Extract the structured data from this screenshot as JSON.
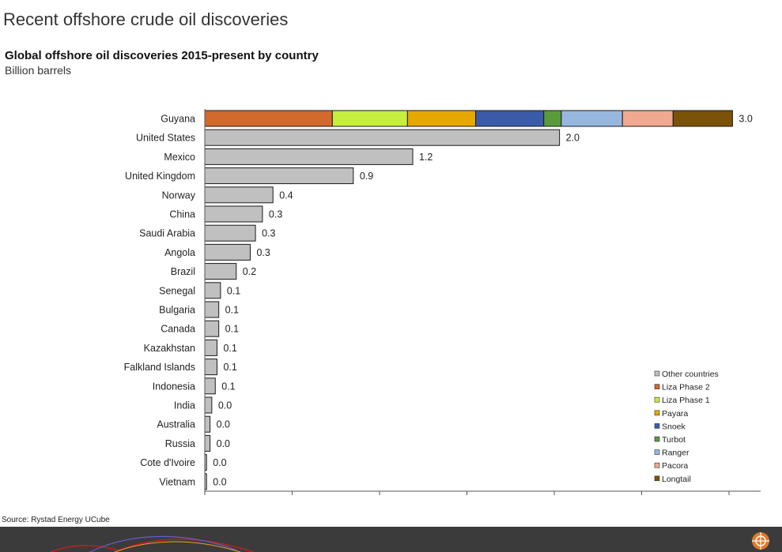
{
  "page_title": "Recent offshore crude oil discoveries",
  "source": "Source: Rystad Energy UCube",
  "colors": {
    "other": "#c0c0c0",
    "Liza Phase 2": "#d2692d",
    "Liza Phase 1": "#c6ee3e",
    "Payara": "#e6a700",
    "Snoek": "#3a5ba8",
    "Turbot": "#5b9a3c",
    "Ranger": "#98b7de",
    "Pacora": "#f0a890",
    "Longtail": "#7b5209",
    "footer": "#3b3b3b"
  },
  "chart_data": {
    "type": "bar",
    "orientation": "horizontal",
    "stacked": true,
    "title": "Global offshore oil discoveries 2015-present by country",
    "subtitle": "Billion barrels",
    "categories": [
      "Guyana",
      "United States",
      "Mexico",
      "United Kingdom",
      "Norway",
      "China",
      "Saudi Arabia",
      "Angola",
      "Brazil",
      "Senegal",
      "Bulgaria",
      "Canada",
      "Kazakhstan",
      "Falkland Islands",
      "Indonesia",
      "India",
      "Australia",
      "Russia",
      "Cote d'Ivoire",
      "Vietnam"
    ],
    "totals": [
      "3.0",
      "2.0",
      "1.2",
      "0.9",
      "0.4",
      "0.3",
      "0.3",
      "0.3",
      "0.2",
      "0.1",
      "0.1",
      "0.1",
      "0.1",
      "0.1",
      "0.1",
      "0.0",
      "0.0",
      "0.0",
      "0.0",
      "0.0"
    ],
    "series": [
      {
        "name": "Other countries",
        "values": [
          0,
          2.03,
          1.19,
          0.85,
          0.39,
          0.33,
          0.29,
          0.26,
          0.18,
          0.09,
          0.08,
          0.08,
          0.07,
          0.07,
          0.06,
          0.04,
          0.03,
          0.03,
          0.01,
          0.01
        ]
      },
      {
        "name": "Liza Phase 2",
        "values": [
          0.73,
          0,
          0,
          0,
          0,
          0,
          0,
          0,
          0,
          0,
          0,
          0,
          0,
          0,
          0,
          0,
          0,
          0,
          0,
          0
        ]
      },
      {
        "name": "Liza Phase 1",
        "values": [
          0.43,
          0,
          0,
          0,
          0,
          0,
          0,
          0,
          0,
          0,
          0,
          0,
          0,
          0,
          0,
          0,
          0,
          0,
          0,
          0
        ]
      },
      {
        "name": "Payara",
        "values": [
          0.39,
          0,
          0,
          0,
          0,
          0,
          0,
          0,
          0,
          0,
          0,
          0,
          0,
          0,
          0,
          0,
          0,
          0,
          0,
          0
        ]
      },
      {
        "name": "Snoek",
        "values": [
          0.39,
          0,
          0,
          0,
          0,
          0,
          0,
          0,
          0,
          0,
          0,
          0,
          0,
          0,
          0,
          0,
          0,
          0,
          0,
          0
        ]
      },
      {
        "name": "Turbot",
        "values": [
          0.1,
          0,
          0,
          0,
          0,
          0,
          0,
          0,
          0,
          0,
          0,
          0,
          0,
          0,
          0,
          0,
          0,
          0,
          0,
          0
        ]
      },
      {
        "name": "Ranger",
        "values": [
          0.35,
          0,
          0,
          0,
          0,
          0,
          0,
          0,
          0,
          0,
          0,
          0,
          0,
          0,
          0,
          0,
          0,
          0,
          0,
          0
        ]
      },
      {
        "name": "Pacora",
        "values": [
          0.29,
          0,
          0,
          0,
          0,
          0,
          0,
          0,
          0,
          0,
          0,
          0,
          0,
          0,
          0,
          0,
          0,
          0,
          0,
          0
        ]
      },
      {
        "name": "Longtail",
        "values": [
          0.34,
          0,
          0,
          0,
          0,
          0,
          0,
          0,
          0,
          0,
          0,
          0,
          0,
          0,
          0,
          0,
          0,
          0,
          0,
          0
        ]
      }
    ],
    "xlim": [
      0,
      3.2
    ],
    "x_ticks_labeled": false,
    "grid": false,
    "legend_position": "bottom-right"
  }
}
